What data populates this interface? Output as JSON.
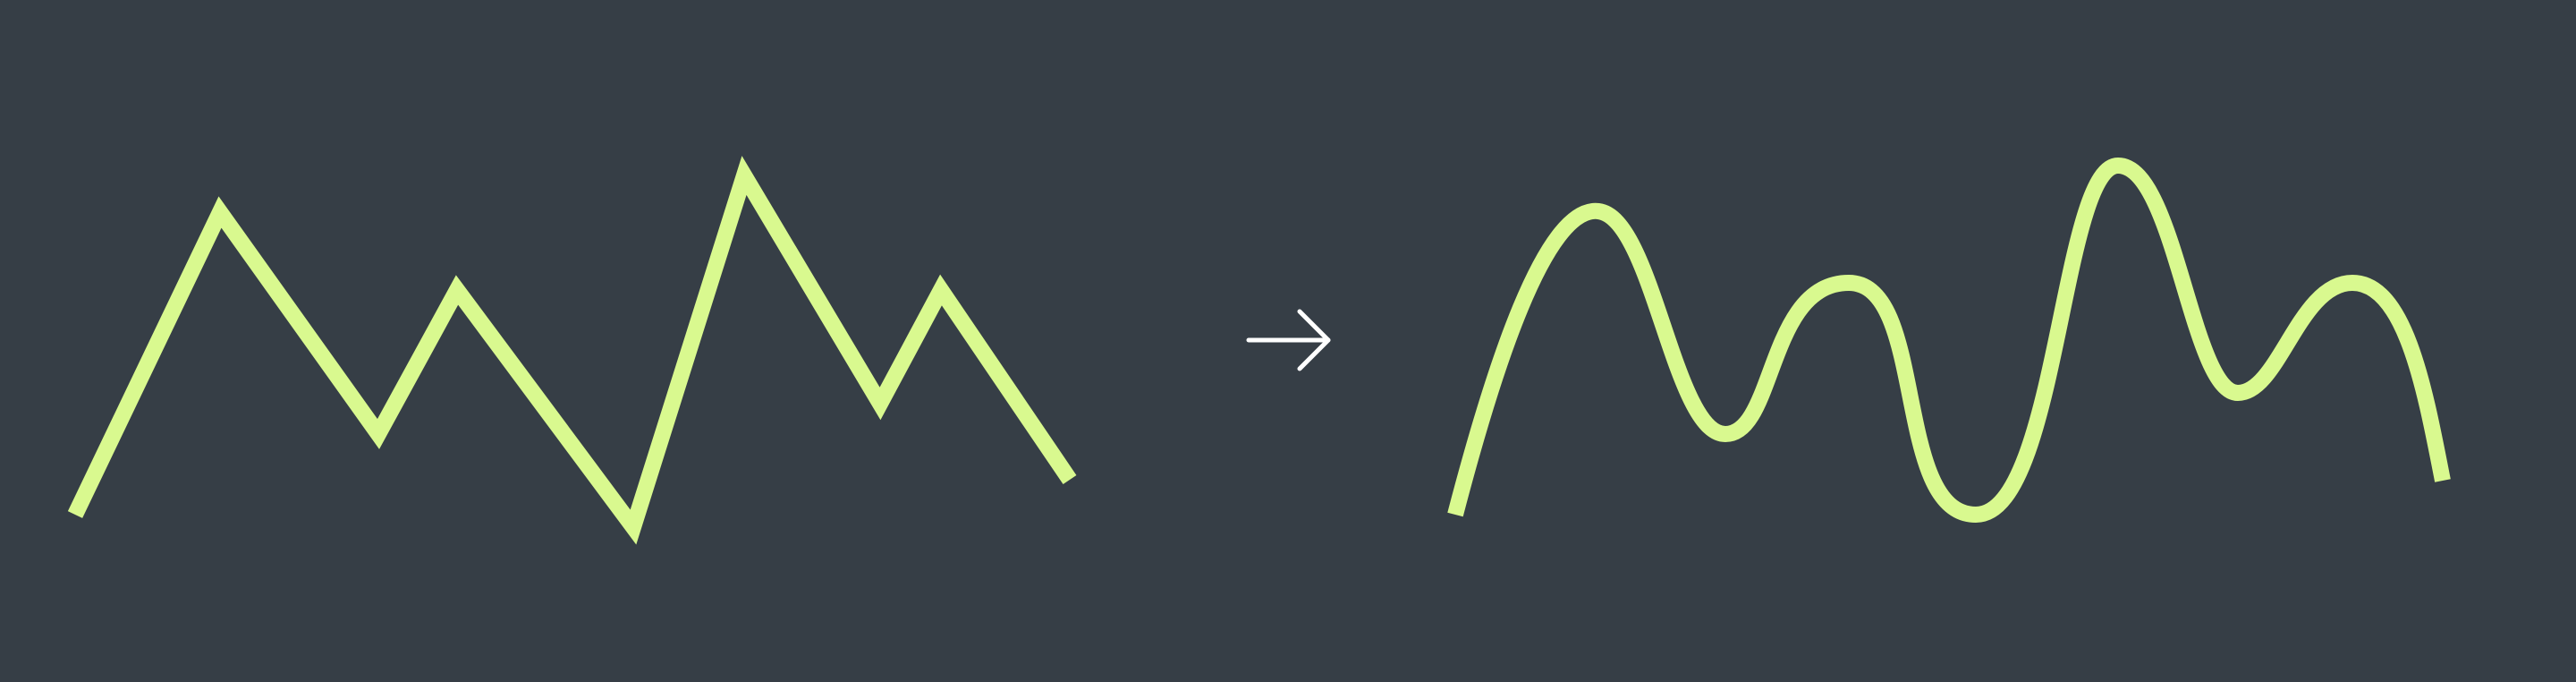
{
  "colors": {
    "background": "#363e46",
    "line": "#d9f98f",
    "arrow": "#ffffff"
  },
  "diagram": {
    "left_shape": "jagged-polyline",
    "right_shape": "smoothed-curve",
    "arrow_icon": "arrow-right-icon"
  }
}
